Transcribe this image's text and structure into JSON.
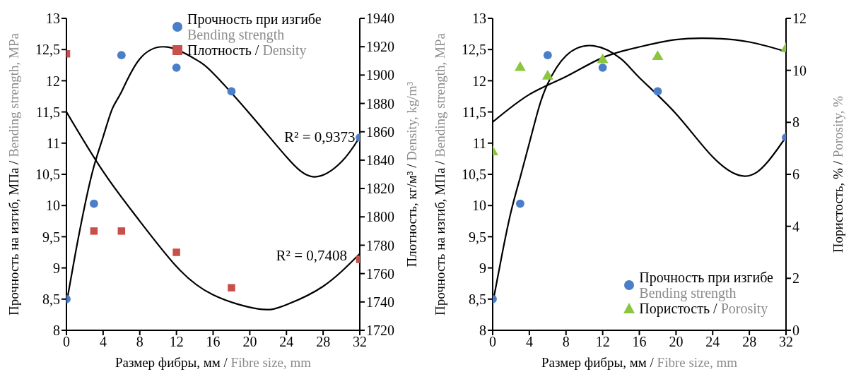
{
  "chart_data": [
    {
      "type": "scatter",
      "xlabel": "Размер фибры, мм / Fibre size, mm",
      "ylabel": "Прочность на изгиб, МПа / Bending strength, MPa",
      "y2label": "Плотность, кг/м³ / Density, kg/m³",
      "legend": "top",
      "x": [
        0,
        3,
        6,
        12,
        18,
        32
      ],
      "xlim": [
        0,
        32
      ],
      "xticks": [
        0,
        4,
        8,
        12,
        16,
        20,
        24,
        28,
        32
      ],
      "ylim": [
        8,
        13
      ],
      "yticks": [
        8,
        {
          "value": 8.5,
          "label": "8,5"
        },
        9,
        {
          "value": 9.5,
          "label": "9,5"
        },
        10,
        {
          "value": 10.5,
          "label": "10,5"
        },
        11,
        {
          "value": 11.5,
          "label": "11,5"
        },
        12,
        {
          "value": 12.5,
          "label": "12,5"
        },
        13
      ],
      "y2lim": [
        1720,
        1940
      ],
      "y2ticks": [
        1720,
        1740,
        1760,
        1780,
        1800,
        1820,
        1840,
        1860,
        1880,
        1900,
        1920,
        1940
      ],
      "annotations": [
        {
          "text": "R² = 0,9373",
          "x": 31.5,
          "y": 11.1
        },
        "R² = 0,7408"
      ],
      "series": [
        {
          "name": "Прочность при изгибе\nBending strength",
          "color": "#4a7ec8",
          "marker": "circle",
          "values": [
            8.5,
            10.03,
            12.41,
            12.21,
            11.83,
            11.09
          ]
        },
        {
          "name": "Плотность / Density",
          "color": "#c8504a",
          "marker": "square",
          "axis": "y2",
          "values": [
            1915,
            1790,
            1790,
            1775,
            1750,
            1770
          ]
        },
        {
          "type": "line",
          "color": "#000000",
          "marker": "none",
          "line_style": "solid",
          "x": [
            0,
            1,
            2,
            3,
            4,
            5,
            6,
            8,
            11,
            14,
            16,
            20,
            24,
            27,
            30,
            32
          ],
          "values": [
            8.43,
            9.25,
            10.0,
            10.63,
            11.1,
            11.55,
            11.82,
            12.35,
            12.54,
            12.35,
            12.12,
            11.47,
            10.78,
            10.46,
            10.7,
            11.1
          ]
        },
        {
          "type": "line",
          "color": "#000000",
          "marker": "none",
          "line_style": "solid",
          "axis": "y2",
          "x": [
            0,
            4,
            8,
            12,
            16,
            21,
            24,
            28,
            32
          ],
          "values": [
            1874,
            1832,
            1797,
            1765,
            1745,
            1735,
            1738,
            1751,
            1774
          ]
        }
      ]
    },
    {
      "type": "scatter",
      "xlabel": "Размер фибры, мм / Fibre size, mm",
      "ylabel": "Прочность на изгиб, МПа / Bending strength, MPa",
      "y2label": "Пористость, % / Porosity, %",
      "legend": "bottom right",
      "x": [
        0,
        3,
        6,
        12,
        18,
        32
      ],
      "xlim": [
        0,
        32
      ],
      "xticks": [
        0,
        4,
        8,
        12,
        16,
        20,
        24,
        28,
        32
      ],
      "ylim": [
        8,
        13
      ],
      "yticks": [
        8,
        {
          "value": 8.5,
          "label": "8,5"
        },
        9,
        {
          "value": 9.5,
          "label": "9,5"
        },
        10,
        {
          "value": 10.5,
          "label": "10,5"
        },
        11,
        {
          "value": 11.5,
          "label": "11,5"
        },
        12,
        {
          "value": 12.5,
          "label": "12,5"
        },
        13
      ],
      "y2lim": [
        0,
        12
      ],
      "y2ticks": [
        0,
        2,
        4,
        6,
        8,
        10,
        12
      ],
      "series": [
        {
          "name": "Прочность при изгибе\nBending strength",
          "color": "#4a7ec8",
          "marker": "circle",
          "values": [
            8.5,
            10.03,
            12.41,
            12.21,
            11.83,
            11.09
          ]
        },
        {
          "name": "Пористость / Porosity",
          "color": "#8cc63f",
          "marker": "triangle",
          "axis": "y2",
          "values": [
            6.86,
            10.1,
            9.77,
            10.4,
            10.52,
            10.83
          ]
        },
        {
          "type": "line",
          "color": "#000000",
          "marker": "none",
          "line_style": "solid",
          "x": [
            0,
            1,
            2,
            3,
            4,
            5,
            6,
            8,
            11,
            14,
            16,
            20,
            24,
            27.5,
            30,
            32
          ],
          "values": [
            8.43,
            9.2,
            9.9,
            10.45,
            11.0,
            11.55,
            11.95,
            12.4,
            12.56,
            12.35,
            12.05,
            11.47,
            10.78,
            10.47,
            10.7,
            11.1
          ]
        },
        {
          "type": "line",
          "color": "#000000",
          "marker": "none",
          "line_style": "solid",
          "axis": "y2",
          "x": [
            0,
            4,
            8,
            12,
            16,
            20,
            24,
            28,
            32
          ],
          "values": [
            8.01,
            9.07,
            9.76,
            10.49,
            10.9,
            11.18,
            11.23,
            11.09,
            10.72
          ]
        }
      ]
    }
  ]
}
